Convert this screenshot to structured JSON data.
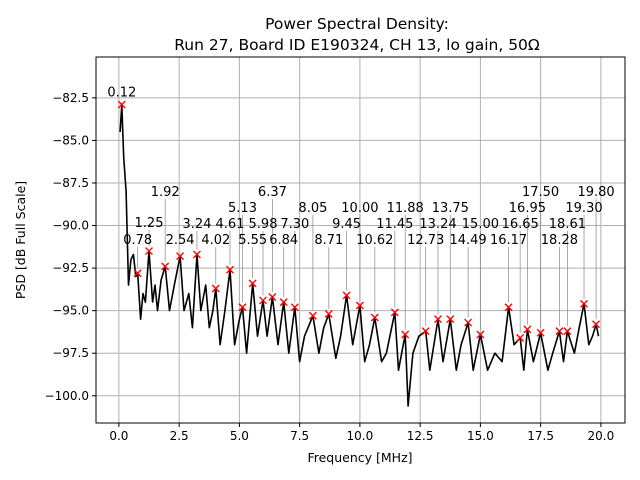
{
  "chart_data": {
    "type": "line",
    "title": [
      "Power Spectral Density:",
      "Run 27, Board ID E190324, CH 13, lo gain, 50Ω"
    ],
    "xlabel": "Frequency [MHz]",
    "ylabel": "PSD [dB Full Scale]",
    "xlim": [
      -0.95,
      21.0
    ],
    "ylim": [
      -101.6,
      -80.1
    ],
    "grid": true,
    "x_ticks": [
      0,
      2.5,
      5,
      7.5,
      10,
      12.5,
      15,
      17.5,
      20
    ],
    "x_tick_labels": [
      "0.0",
      "2.5",
      "5.0",
      "7.5",
      "10.0",
      "12.5",
      "15.0",
      "17.5",
      "20.0"
    ],
    "y_ticks": [
      -82.5,
      -85,
      -87.5,
      -90,
      -92.5,
      -95,
      -97.5,
      -100
    ],
    "y_tick_labels": [
      "−82.5",
      "−85.0",
      "−87.5",
      "−90.0",
      "−92.5",
      "−95.0",
      "−97.5",
      "−100.0"
    ],
    "series": [
      {
        "name": "PSD",
        "color": "#000000",
        "points": [
          [
            0.05,
            -84.5
          ],
          [
            0.12,
            -82.9
          ],
          [
            0.2,
            -86
          ],
          [
            0.3,
            -88
          ],
          [
            0.4,
            -93.5
          ],
          [
            0.5,
            -92
          ],
          [
            0.6,
            -91.7
          ],
          [
            0.7,
            -93
          ],
          [
            0.78,
            -92.8
          ],
          [
            0.9,
            -95.5
          ],
          [
            1.0,
            -94
          ],
          [
            1.1,
            -94.5
          ],
          [
            1.25,
            -91.5
          ],
          [
            1.4,
            -94.5
          ],
          [
            1.5,
            -93.5
          ],
          [
            1.6,
            -95
          ],
          [
            1.75,
            -93.2
          ],
          [
            1.92,
            -92.4
          ],
          [
            2.1,
            -95
          ],
          [
            2.3,
            -93.5
          ],
          [
            2.54,
            -91.8
          ],
          [
            2.7,
            -95
          ],
          [
            2.9,
            -94
          ],
          [
            3.05,
            -96
          ],
          [
            3.24,
            -91.7
          ],
          [
            3.4,
            -95
          ],
          [
            3.6,
            -93.5
          ],
          [
            3.75,
            -96
          ],
          [
            3.9,
            -95
          ],
          [
            4.02,
            -93.7
          ],
          [
            4.2,
            -97
          ],
          [
            4.4,
            -95
          ],
          [
            4.61,
            -92.6
          ],
          [
            4.8,
            -97
          ],
          [
            5.0,
            -95.5
          ],
          [
            5.13,
            -94.8
          ],
          [
            5.3,
            -97.5
          ],
          [
            5.55,
            -93.4
          ],
          [
            5.75,
            -96.5
          ],
          [
            5.98,
            -94.4
          ],
          [
            6.15,
            -96.5
          ],
          [
            6.37,
            -94.2
          ],
          [
            6.6,
            -97
          ],
          [
            6.84,
            -94.5
          ],
          [
            7.05,
            -97.5
          ],
          [
            7.3,
            -94.8
          ],
          [
            7.5,
            -98
          ],
          [
            7.7,
            -96.5
          ],
          [
            8.05,
            -95.3
          ],
          [
            8.3,
            -97.5
          ],
          [
            8.5,
            -96
          ],
          [
            8.71,
            -95.2
          ],
          [
            9.0,
            -97.8
          ],
          [
            9.2,
            -96.5
          ],
          [
            9.45,
            -94.1
          ],
          [
            9.7,
            -97
          ],
          [
            10.0,
            -94.7
          ],
          [
            10.2,
            -98
          ],
          [
            10.4,
            -97
          ],
          [
            10.62,
            -95.4
          ],
          [
            10.9,
            -98
          ],
          [
            11.1,
            -97.5
          ],
          [
            11.45,
            -95.1
          ],
          [
            11.6,
            -98.5
          ],
          [
            11.88,
            -96.4
          ],
          [
            12.0,
            -100.6
          ],
          [
            12.2,
            -97.5
          ],
          [
            12.45,
            -96.5
          ],
          [
            12.73,
            -96.2
          ],
          [
            12.9,
            -98.5
          ],
          [
            13.24,
            -95.5
          ],
          [
            13.45,
            -98
          ],
          [
            13.75,
            -95.5
          ],
          [
            14.0,
            -98.5
          ],
          [
            14.2,
            -97
          ],
          [
            14.49,
            -95.7
          ],
          [
            14.7,
            -98.5
          ],
          [
            15.0,
            -96.4
          ],
          [
            15.3,
            -98.5
          ],
          [
            15.6,
            -97.5
          ],
          [
            15.9,
            -98
          ],
          [
            16.17,
            -94.8
          ],
          [
            16.4,
            -97
          ],
          [
            16.65,
            -96.6
          ],
          [
            16.8,
            -98.5
          ],
          [
            16.95,
            -96.1
          ],
          [
            17.2,
            -98
          ],
          [
            17.5,
            -96.3
          ],
          [
            17.8,
            -98.5
          ],
          [
            18.0,
            -97.5
          ],
          [
            18.28,
            -96.2
          ],
          [
            18.45,
            -98
          ],
          [
            18.61,
            -96.2
          ],
          [
            18.9,
            -97.5
          ],
          [
            19.1,
            -96
          ],
          [
            19.3,
            -94.6
          ],
          [
            19.5,
            -97
          ],
          [
            19.65,
            -96.5
          ],
          [
            19.8,
            -95.8
          ],
          [
            19.9,
            -96.5
          ]
        ]
      }
    ],
    "peaks": {
      "color": "#ff0000",
      "marker": "x",
      "x": [
        0.12,
        0.78,
        1.25,
        1.92,
        2.54,
        3.24,
        4.02,
        4.61,
        5.13,
        5.55,
        5.98,
        6.37,
        6.84,
        7.3,
        8.05,
        8.71,
        9.45,
        10.0,
        10.62,
        11.45,
        11.88,
        12.73,
        13.24,
        13.75,
        14.49,
        15.0,
        16.17,
        16.65,
        16.95,
        17.5,
        18.28,
        18.61,
        19.3,
        19.8
      ],
      "y": [
        -82.9,
        -92.8,
        -91.5,
        -92.4,
        -91.8,
        -91.7,
        -93.7,
        -92.6,
        -94.8,
        -93.4,
        -94.4,
        -94.2,
        -94.5,
        -94.8,
        -95.3,
        -95.2,
        -94.1,
        -94.7,
        -95.4,
        -95.1,
        -96.4,
        -96.2,
        -95.5,
        -95.5,
        -95.7,
        -96.4,
        -94.8,
        -96.6,
        -96.1,
        -96.3,
        -96.2,
        -96.2,
        -94.6,
        -95.8
      ],
      "labels": [
        "0.12",
        "0.78",
        "1.25",
        "1.92",
        "2.54",
        "3.24",
        "4.02",
        "4.61",
        "5.13",
        "5.55",
        "5.98",
        "6.37",
        "6.84",
        "7.30",
        "8.05",
        "8.71",
        "9.45",
        "10.00",
        "10.62",
        "11.45",
        "11.88",
        "12.73",
        "13.24",
        "13.75",
        "14.49",
        "15.00",
        "16.17",
        "16.65",
        "16.95",
        "17.50",
        "18.28",
        "18.61",
        "19.30",
        "19.80"
      ]
    }
  }
}
